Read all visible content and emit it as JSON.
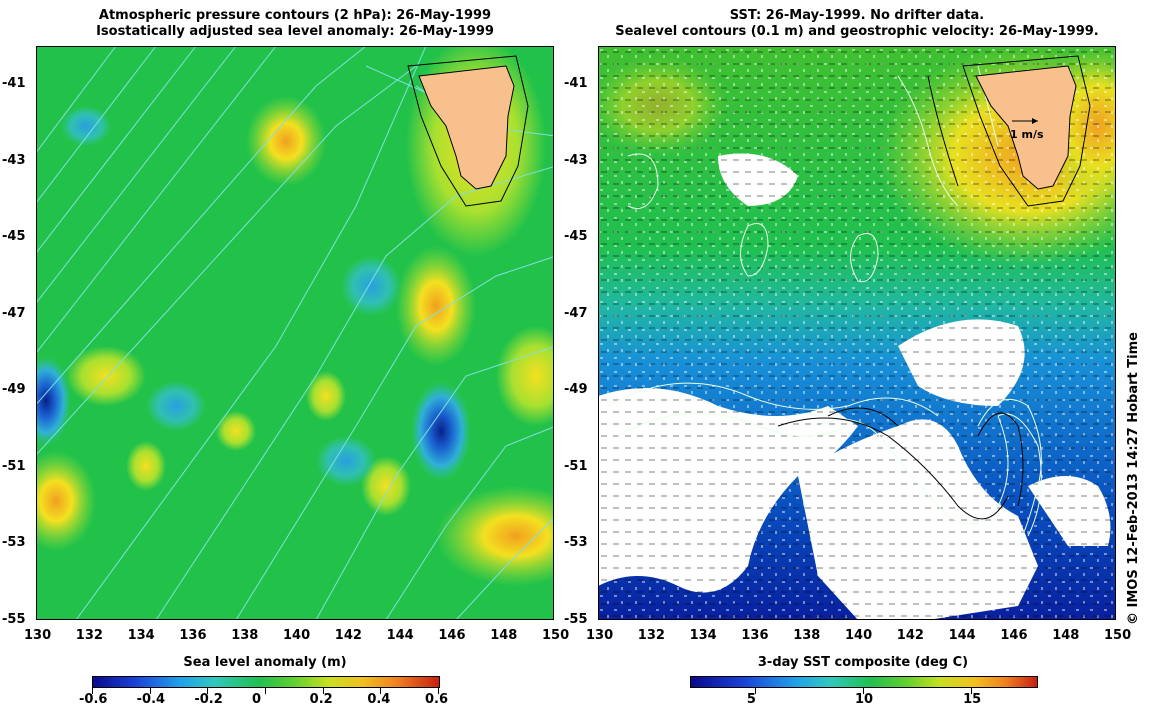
{
  "left_panel": {
    "title_line1": "Atmospheric pressure contours (2 hPa): 26-May-1999",
    "title_line2": "Isostatically adjusted sea level anomaly: 26-May-1999",
    "x_ticks": [
      "130",
      "132",
      "134",
      "136",
      "138",
      "140",
      "142",
      "144",
      "146",
      "148",
      "150"
    ],
    "y_ticks": [
      "-41",
      "-43",
      "-45",
      "-47",
      "-49",
      "-51",
      "-53",
      "-55"
    ],
    "colorbar_title": "Sea level anomaly (m)",
    "colorbar_ticks": [
      "-0.6",
      "-0.4",
      "-0.2",
      "0",
      "0.2",
      "0.4",
      "0.6"
    ]
  },
  "right_panel": {
    "title_line1": "SST: 26-May-1999. No drifter data.",
    "title_line2": "Sealevel contours (0.1 m) and geostrophic velocity: 26-May-1999.",
    "x_ticks": [
      "130",
      "132",
      "134",
      "136",
      "138",
      "140",
      "142",
      "144",
      "146",
      "148",
      "150"
    ],
    "y_ticks": [
      "-41",
      "-43",
      "-45",
      "-47",
      "-49",
      "-51",
      "-53",
      "-55"
    ],
    "velocity_scale_label": "1 m/s",
    "colorbar_title": "3-day SST composite (deg C)",
    "colorbar_ticks": [
      "5",
      "10",
      "15"
    ]
  },
  "credit": "© IMOS 12-Feb-2013 14:27 Hobart Time",
  "colors": {
    "land": "#f7c08c",
    "ocean_base": "#22c24a",
    "cloud_mask": "#ffffff",
    "contour_left": "#7fe0e0",
    "contour_right": "#e8ffe8"
  }
}
